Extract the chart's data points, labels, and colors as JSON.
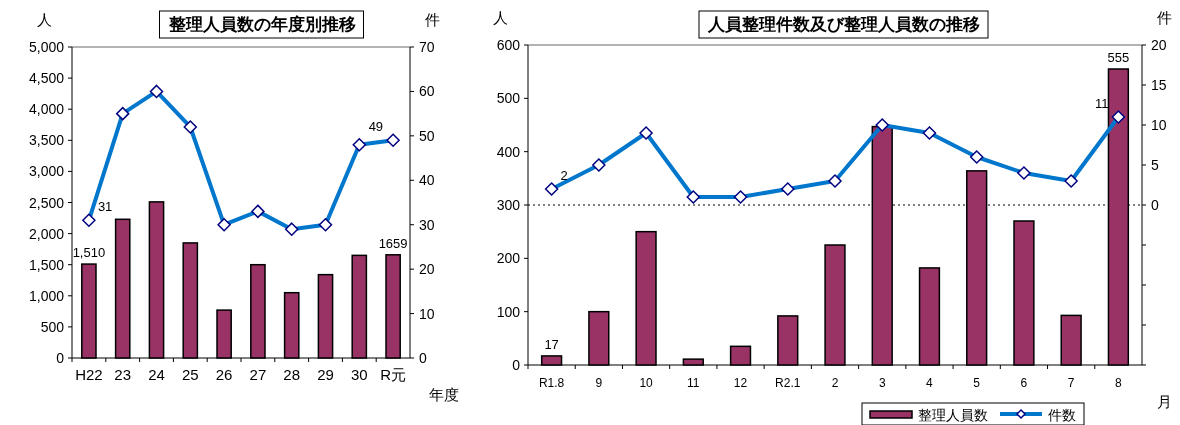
{
  "chart_data": [
    {
      "type": "bar",
      "title": "整理人員数の年度別推移",
      "xlabel": "年度",
      "ylabel": "人",
      "y2label": "件",
      "categories": [
        "H22",
        "23",
        "24",
        "25",
        "26",
        "27",
        "28",
        "29",
        "30",
        "R元"
      ],
      "ylim": [
        0,
        5000
      ],
      "yticks": [
        {
          "value": 0,
          "label": "0"
        },
        {
          "value": 500,
          "label": "500"
        },
        {
          "value": 1000,
          "label": "1,000"
        },
        {
          "value": 1500,
          "label": "1,500"
        },
        {
          "value": 2000,
          "label": "2,000"
        },
        {
          "value": 2500,
          "label": "2,500"
        },
        {
          "value": 3000,
          "label": "3,000"
        },
        {
          "value": 3500,
          "label": "3,500"
        },
        {
          "value": 4000,
          "label": "4,000"
        },
        {
          "value": 4500,
          "label": "4,500"
        },
        {
          "value": 5000,
          "label": "5,000"
        }
      ],
      "y2lim": [
        0,
        70
      ],
      "y2ticks": [
        0,
        10,
        20,
        30,
        40,
        50,
        60,
        70
      ],
      "marker": "diamond",
      "series": [
        {
          "color": "#993366",
          "values": [
            1510,
            2230,
            2510,
            1850,
            770,
            1500,
            1050,
            1340,
            1650,
            1659
          ],
          "value_labels": [
            "1,510",
            null,
            null,
            null,
            null,
            null,
            null,
            null,
            null,
            "1659"
          ]
        },
        {
          "type": "line",
          "axis": "y2",
          "color": "#0077cc",
          "values": [
            31,
            55,
            60,
            52,
            30,
            33,
            29,
            30,
            48,
            49
          ],
          "value_labels": [
            "31",
            null,
            null,
            null,
            null,
            null,
            null,
            null,
            null,
            "49"
          ]
        }
      ]
    },
    {
      "type": "bar",
      "title": "人員整理件数及び整理人員数の推移",
      "xlabel": "月",
      "ylabel": "人",
      "y2label": "件",
      "categories": [
        "R1.8",
        "9",
        "10",
        "11",
        "12",
        "R2.1",
        "2",
        "3",
        "4",
        "5",
        "6",
        "7",
        "8"
      ],
      "ylim": [
        0,
        600
      ],
      "yticks": [
        0,
        100,
        200,
        300,
        400,
        500,
        600
      ],
      "y2lim": [
        -20,
        20
      ],
      "y2ticks": [
        {
          "value": -20,
          "label": null
        },
        {
          "value": -15,
          "label": null
        },
        {
          "value": -10,
          "label": null
        },
        {
          "value": -5,
          "label": null
        },
        0,
        5,
        10,
        15,
        20
      ],
      "marker": "diamond",
      "legend": "bottom right",
      "ref_lines": [
        {
          "axis": "y2",
          "value": 0,
          "color": "#000000",
          "line_style": "dotted"
        }
      ],
      "series": [
        {
          "name": "整理人員数",
          "color": "#993366",
          "values": [
            17,
            100,
            250,
            11,
            35,
            92,
            225,
            447,
            182,
            364,
            270,
            93,
            555
          ],
          "value_labels": [
            "17",
            null,
            null,
            null,
            null,
            null,
            null,
            null,
            null,
            null,
            null,
            null,
            "555"
          ]
        },
        {
          "type": "line",
          "name": "件数",
          "axis": "y2",
          "color": "#0077cc",
          "values": [
            2,
            5,
            9,
            1,
            1,
            2,
            3,
            10,
            9,
            6,
            4,
            3,
            11
          ],
          "value_labels": [
            "2",
            null,
            null,
            null,
            null,
            null,
            null,
            null,
            null,
            null,
            null,
            null,
            "11"
          ]
        }
      ]
    }
  ]
}
